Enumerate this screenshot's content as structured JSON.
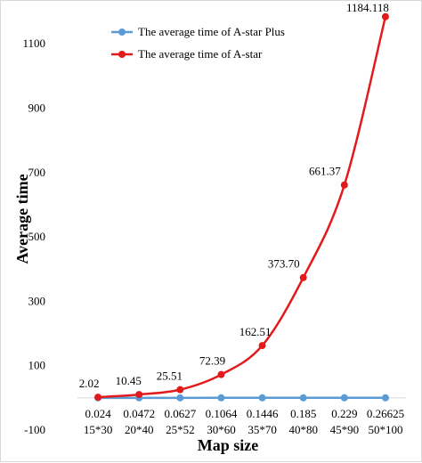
{
  "chart_data": {
    "type": "line",
    "xlabel": "Map size",
    "ylabel": "Average time",
    "ylim": [
      -100,
      1200
    ],
    "yticks": [
      -100,
      100,
      300,
      500,
      700,
      900,
      1100
    ],
    "grid": false,
    "legend": "top-left",
    "categories": [
      {
        "time": "0.024",
        "size": "15*30"
      },
      {
        "time": "0.0472",
        "size": "20*40"
      },
      {
        "time": "0.0627",
        "size": "25*52"
      },
      {
        "time": "0.1064",
        "size": "30*60"
      },
      {
        "time": "0.1446",
        "size": "35*70"
      },
      {
        "time": "0.185",
        "size": "40*80"
      },
      {
        "time": "0.229",
        "size": "45*90"
      },
      {
        "time": "0.26625",
        "size": "50*100"
      }
    ],
    "series": [
      {
        "name": "The average time of A-star Plus",
        "color": "#5b9bd5",
        "values": [
          0.024,
          0.0472,
          0.0627,
          0.1064,
          0.1446,
          0.185,
          0.229,
          0.26625
        ]
      },
      {
        "name": "The average time of A-star",
        "color": "#e31a1c",
        "values": [
          2.02,
          10.45,
          25.51,
          72.39,
          162.51,
          373.7,
          661.37,
          1184.118
        ],
        "labels": [
          "2.02",
          "10.45",
          "25.51",
          "72.39",
          "162.51",
          "373.70",
          "661.37",
          "1184.118"
        ]
      }
    ]
  }
}
